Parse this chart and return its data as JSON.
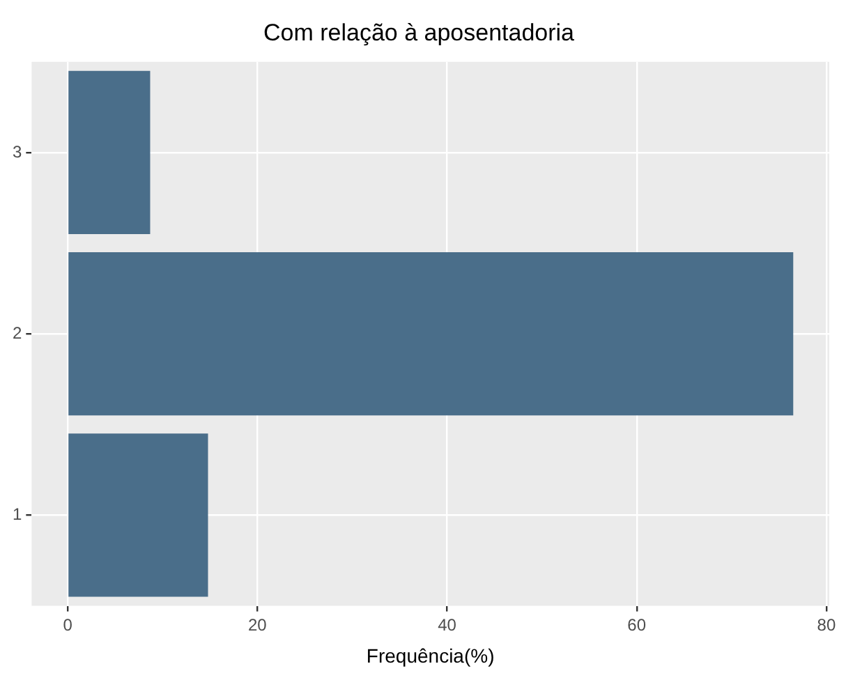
{
  "chart_data": {
    "type": "bar",
    "orientation": "horizontal",
    "title": "Com relação à aposentadoria",
    "xlabel": "Frequência(%)",
    "categories": [
      "3",
      "2",
      "1"
    ],
    "values": [
      8.7,
      76.5,
      14.8
    ],
    "color": "#4a6e8a",
    "xlim": [
      -3.8,
      80.3
    ],
    "xticks": [
      0,
      20,
      40,
      60,
      80
    ],
    "grid": true
  }
}
